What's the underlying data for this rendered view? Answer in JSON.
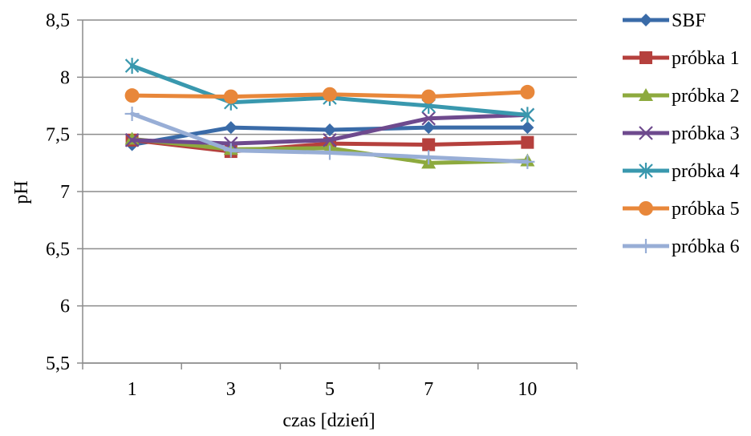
{
  "chart_data": {
    "type": "line",
    "xlabel": "czas [dzień]",
    "ylabel": "pH",
    "categories": [
      "1",
      "3",
      "5",
      "7",
      "10"
    ],
    "ylim": [
      5.5,
      8.5
    ],
    "yticks": [
      "5,5",
      "6",
      "6,5",
      "7",
      "7,5",
      "8",
      "8,5"
    ],
    "grid": "horizontal",
    "legend_position": "right",
    "series": [
      {
        "name": "SBF",
        "color": "#3A6BA8",
        "marker": "diamond",
        "values": [
          7.41,
          7.56,
          7.54,
          7.56,
          7.56
        ]
      },
      {
        "name": "próbka 1",
        "color": "#B5403D",
        "marker": "square",
        "values": [
          7.45,
          7.35,
          7.42,
          7.41,
          7.43
        ]
      },
      {
        "name": "próbka 2",
        "color": "#8DAA3E",
        "marker": "triangle",
        "values": [
          7.46,
          7.37,
          7.38,
          7.25,
          7.27
        ]
      },
      {
        "name": "próbka 3",
        "color": "#6E4A8E",
        "marker": "x",
        "values": [
          7.45,
          7.42,
          7.45,
          7.64,
          7.67
        ]
      },
      {
        "name": "próbka 4",
        "color": "#3998AE",
        "marker": "star",
        "values": [
          8.1,
          7.78,
          7.82,
          7.75,
          7.67
        ]
      },
      {
        "name": "próbka 5",
        "color": "#E8873A",
        "marker": "circle",
        "values": [
          7.84,
          7.83,
          7.85,
          7.83,
          7.87
        ]
      },
      {
        "name": "próbka 6",
        "color": "#98AED6",
        "marker": "plus",
        "values": [
          7.68,
          7.36,
          7.34,
          7.3,
          7.26
        ]
      }
    ]
  }
}
